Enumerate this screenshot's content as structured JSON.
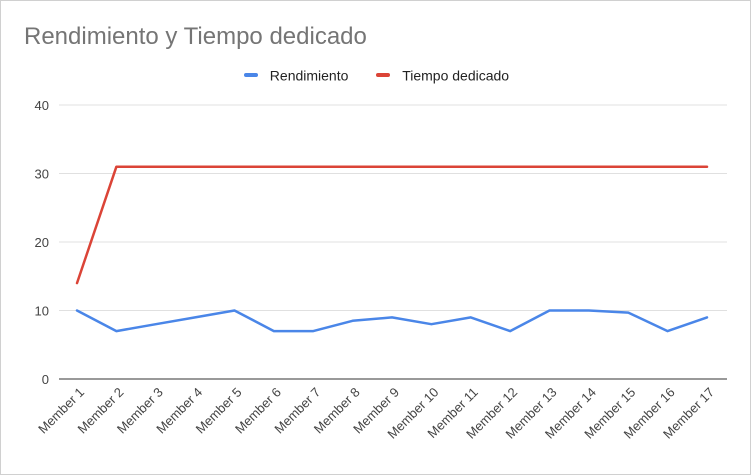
{
  "chart_data": {
    "type": "line",
    "title": "Rendimiento y Tiempo dedicado",
    "xlabel": "",
    "ylabel": "",
    "categories": [
      "Member 1",
      "Member 2",
      "Member 3",
      "Member 4",
      "Member 5",
      "Member 6",
      "Member 7",
      "Member 8",
      "Member 9",
      "Member 10",
      "Member 11",
      "Member 12",
      "Member 13",
      "Member 14",
      "Member 15",
      "Member 16",
      "Member 17"
    ],
    "ylim": [
      0,
      40
    ],
    "yticks": [
      "0",
      "10",
      "20",
      "30",
      "40"
    ],
    "grid": true,
    "legend_position": "top",
    "series": [
      {
        "name": "Rendimiento",
        "color": "#4a86e8",
        "values": [
          10,
          7,
          8,
          9,
          10,
          7,
          7,
          8.5,
          9,
          8,
          9,
          7,
          10,
          10,
          9.7,
          7,
          9
        ]
      },
      {
        "name": "Tiempo dedicado",
        "color": "#db4437",
        "values": [
          14,
          31,
          31,
          31,
          31,
          31,
          31,
          31,
          31,
          31,
          31,
          31,
          31,
          31,
          31,
          31,
          31
        ]
      }
    ]
  }
}
